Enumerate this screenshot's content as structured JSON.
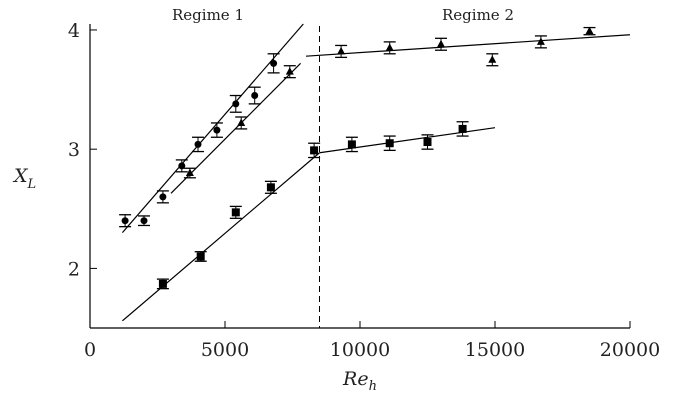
{
  "chart_data": {
    "type": "scatter",
    "title": "",
    "xlabel": "Re",
    "xlabel_sub": "h",
    "ylabel": "X",
    "ylabel_sub": "L",
    "xlim": [
      0,
      20000
    ],
    "ylim": [
      1.5,
      4.05
    ],
    "xticks": [
      0,
      5000,
      10000,
      15000,
      20000
    ],
    "yticks": [
      2,
      3,
      4
    ],
    "xtick_labels": [
      "0",
      "5000",
      "10000",
      "15000",
      "20000"
    ],
    "ytick_labels": [
      "2",
      "3",
      "4"
    ],
    "grid": false,
    "legend": "none",
    "annotations": {
      "regime1": "Regime 1",
      "regime2": "Regime 2",
      "divider_x": 8500
    },
    "series": [
      {
        "marker": "circle",
        "points": [
          {
            "x": 1300,
            "y": 2.4,
            "err": 0.05
          },
          {
            "x": 2000,
            "y": 2.4,
            "err": 0.04
          },
          {
            "x": 2700,
            "y": 2.6,
            "err": 0.05
          },
          {
            "x": 3400,
            "y": 2.86,
            "err": 0.05
          },
          {
            "x": 4000,
            "y": 3.04,
            "err": 0.06
          },
          {
            "x": 4700,
            "y": 3.16,
            "err": 0.06
          },
          {
            "x": 5400,
            "y": 3.38,
            "err": 0.07
          },
          {
            "x": 6100,
            "y": 3.45,
            "err": 0.07
          },
          {
            "x": 6800,
            "y": 3.72,
            "err": 0.08
          }
        ],
        "fit": {
          "x": [
            1200,
            7900
          ],
          "y": [
            2.3,
            4.05
          ]
        }
      },
      {
        "marker": "triangle",
        "points": [
          {
            "x": 3700,
            "y": 2.8,
            "err": 0.04
          },
          {
            "x": 5600,
            "y": 3.22,
            "err": 0.05
          },
          {
            "x": 7400,
            "y": 3.65,
            "err": 0.05
          },
          {
            "x": 9300,
            "y": 3.82,
            "err": 0.05
          },
          {
            "x": 11100,
            "y": 3.85,
            "err": 0.05
          },
          {
            "x": 13000,
            "y": 3.88,
            "err": 0.05
          },
          {
            "x": 14900,
            "y": 3.75,
            "err": 0.05
          },
          {
            "x": 16700,
            "y": 3.9,
            "err": 0.05
          },
          {
            "x": 18500,
            "y": 3.99,
            "err": 0.03
          }
        ],
        "fits": [
          {
            "x": [
              3000,
              7800
            ],
            "y": [
              2.63,
              3.72
            ]
          },
          {
            "x": [
              8000,
              20000
            ],
            "y": [
              3.78,
              3.96
            ]
          }
        ]
      },
      {
        "marker": "square",
        "points": [
          {
            "x": 2700,
            "y": 1.87,
            "err": 0.04
          },
          {
            "x": 4100,
            "y": 2.1,
            "err": 0.04
          },
          {
            "x": 5400,
            "y": 2.47,
            "err": 0.05
          },
          {
            "x": 6700,
            "y": 2.68,
            "err": 0.05
          },
          {
            "x": 8300,
            "y": 2.99,
            "err": 0.06
          },
          {
            "x": 9700,
            "y": 3.04,
            "err": 0.06
          },
          {
            "x": 11100,
            "y": 3.05,
            "err": 0.06
          },
          {
            "x": 12500,
            "y": 3.06,
            "err": 0.06
          },
          {
            "x": 13800,
            "y": 3.17,
            "err": 0.06
          }
        ],
        "fits": [
          {
            "x": [
              1200,
              8500
            ],
            "y": [
              1.56,
              2.97
            ]
          },
          {
            "x": [
              8500,
              15000
            ],
            "y": [
              2.97,
              3.18
            ]
          }
        ]
      }
    ]
  }
}
